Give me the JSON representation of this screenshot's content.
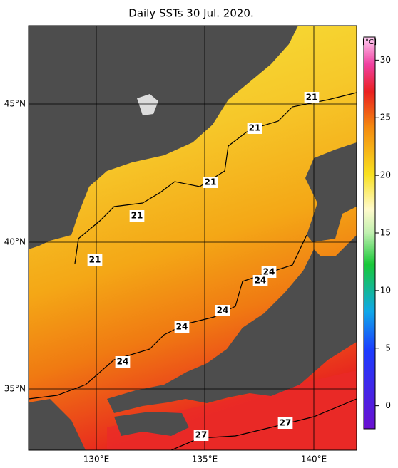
{
  "title": "Daily SSTs 30 Jul. 2020.",
  "latitude_labels": [
    "45°N",
    "40°N",
    "35°N"
  ],
  "longitude_labels": [
    "130°E",
    "135°E",
    "140°E"
  ],
  "colorbar": {
    "unit": "[°C]",
    "range": [
      -2,
      32
    ],
    "ticks": [
      0,
      5,
      10,
      15,
      20,
      25,
      30
    ]
  },
  "contour_labels": [
    "21",
    "21",
    "21",
    "21",
    "21",
    "24",
    "24",
    "24",
    "24",
    "24",
    "27",
    "27"
  ]
}
